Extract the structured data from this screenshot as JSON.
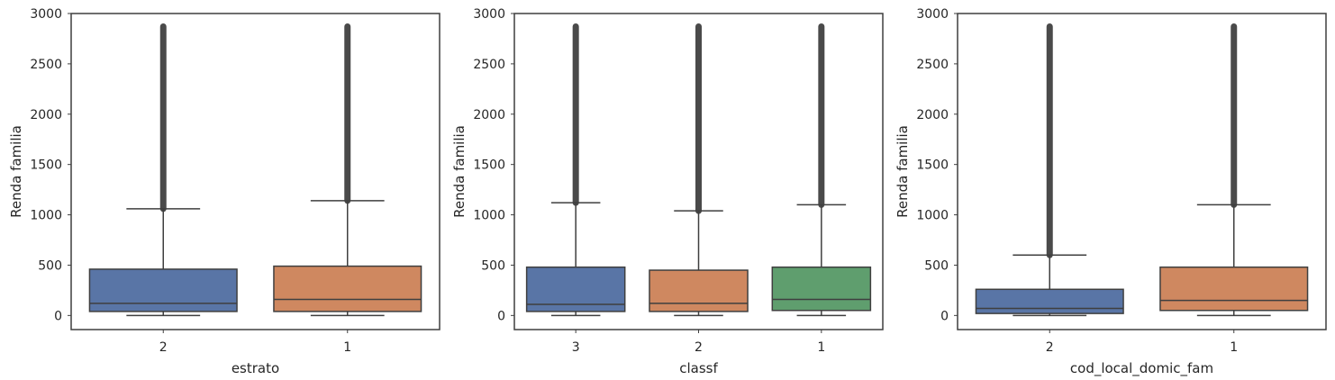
{
  "chart_data": [
    {
      "type": "box",
      "xlabel": "estrato",
      "ylabel": "Renda familia",
      "ylim": [
        -140,
        3000
      ],
      "yticks": [
        0,
        500,
        1000,
        1500,
        2000,
        2500,
        3000
      ],
      "categories": [
        "2",
        "1"
      ],
      "colors": [
        "#5975a6",
        "#cf8860"
      ],
      "boxes": [
        {
          "min": 0,
          "q1": 40,
          "median": 120,
          "q3": 460,
          "whisker_high": 1060,
          "outliers_from": 1060,
          "outliers_to": 2870
        },
        {
          "min": 0,
          "q1": 40,
          "median": 160,
          "q3": 490,
          "whisker_high": 1140,
          "outliers_from": 1140,
          "outliers_to": 2870
        }
      ]
    },
    {
      "type": "box",
      "xlabel": "classf",
      "ylabel": "Renda familia",
      "ylim": [
        -140,
        3000
      ],
      "yticks": [
        0,
        500,
        1000,
        1500,
        2000,
        2500,
        3000
      ],
      "categories": [
        "3",
        "2",
        "1"
      ],
      "colors": [
        "#5975a6",
        "#cf8860",
        "#5f9e6e"
      ],
      "boxes": [
        {
          "min": 0,
          "q1": 40,
          "median": 110,
          "q3": 480,
          "whisker_high": 1120,
          "outliers_from": 1120,
          "outliers_to": 2870
        },
        {
          "min": 0,
          "q1": 40,
          "median": 120,
          "q3": 450,
          "whisker_high": 1040,
          "outliers_from": 1040,
          "outliers_to": 2870
        },
        {
          "min": 0,
          "q1": 50,
          "median": 160,
          "q3": 480,
          "whisker_high": 1100,
          "outliers_from": 1100,
          "outliers_to": 2870
        }
      ]
    },
    {
      "type": "box",
      "xlabel": "cod_local_domic_fam",
      "ylabel": "Renda familia",
      "ylim": [
        -140,
        3000
      ],
      "yticks": [
        0,
        500,
        1000,
        1500,
        2000,
        2500,
        3000
      ],
      "categories": [
        "2",
        "1"
      ],
      "colors": [
        "#5975a6",
        "#cf8860"
      ],
      "boxes": [
        {
          "min": 0,
          "q1": 20,
          "median": 70,
          "q3": 260,
          "whisker_high": 600,
          "outliers_from": 600,
          "outliers_to": 2870
        },
        {
          "min": 0,
          "q1": 50,
          "median": 150,
          "q3": 480,
          "whisker_high": 1100,
          "outliers_from": 1100,
          "outliers_to": 2870
        }
      ]
    }
  ]
}
